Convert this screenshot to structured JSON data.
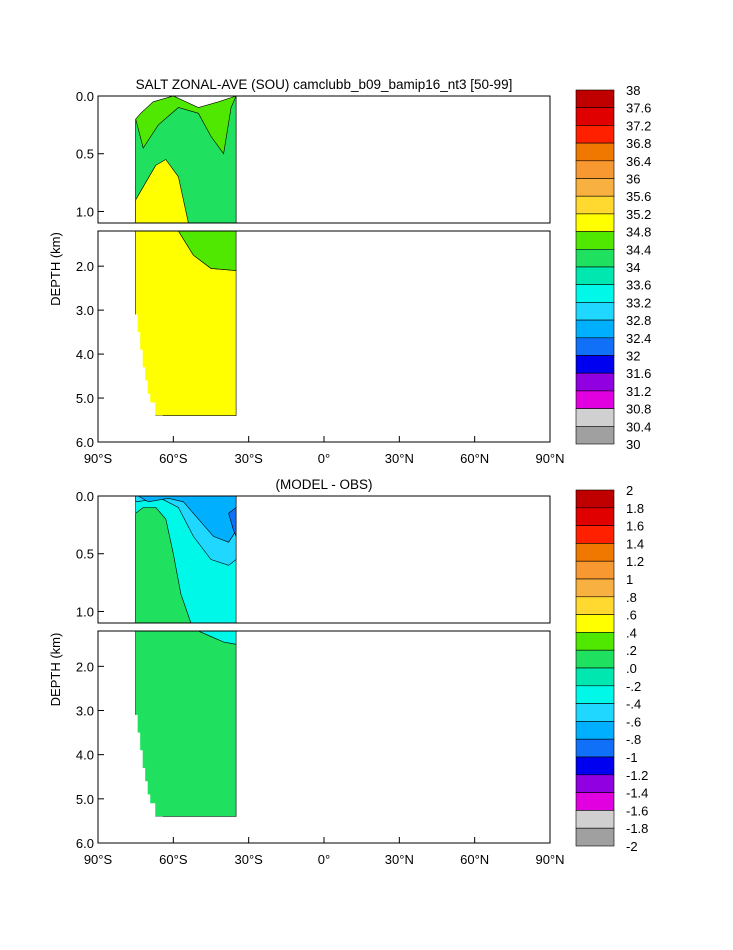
{
  "chart_data": [
    {
      "type": "heatmap",
      "title": "SALT ZONAL-AVE (SOU) camclubb_b09_bamip16_nt3 [50-99]",
      "xlabel": "",
      "ylabel": "DEPTH (km)",
      "x_ticks": [
        "90°S",
        "60°S",
        "30°S",
        "0°",
        "30°N",
        "60°N",
        "90°N"
      ],
      "x_range": [
        -90,
        90
      ],
      "y_range": [
        0,
        6
      ],
      "y_ticks_upper": [
        "0.0",
        "0.5",
        "1.0"
      ],
      "y_ticks_lower": [
        "2.0",
        "3.0",
        "4.0",
        "5.0",
        "6.0"
      ],
      "colorbar": {
        "labels": [
          "38",
          "37.6",
          "37.2",
          "36.8",
          "36.4",
          "36",
          "35.6",
          "35.2",
          "34.8",
          "34.4",
          "34",
          "33.6",
          "33.2",
          "32.8",
          "32.4",
          "32",
          "31.6",
          "31.2",
          "30.8",
          "30.4",
          "30"
        ],
        "colors": [
          "#c00000",
          "#e00000",
          "#ff2000",
          "#f07800",
          "#f89830",
          "#f8b040",
          "#ffd830",
          "#ffff00",
          "#50e800",
          "#20e060",
          "#00e8b0",
          "#00f8e8",
          "#20d8ff",
          "#00b0ff",
          "#1070f8",
          "#0000f0",
          "#9000e0",
          "#e000e0",
          "#d0d0d0",
          "#a0a0a0"
        ]
      },
      "regions": [
        {
          "zone": "upper",
          "fill_level": "34.4-34.8",
          "polygon": [
            [
              -75,
              0.2
            ],
            [
              -73,
              0.15
            ],
            [
              -68,
              0.05
            ],
            [
              -60,
              0.0
            ],
            [
              -50,
              0.1
            ],
            [
              -42,
              0.05
            ],
            [
              -35,
              0.0
            ],
            [
              -35,
              1.1
            ],
            [
              -75,
              1.1
            ]
          ]
        },
        {
          "zone": "upper",
          "fill_level": "34-34.4",
          "polygon": [
            [
              -75,
              0.2
            ],
            [
              -72,
              0.45
            ],
            [
              -66,
              0.25
            ],
            [
              -58,
              0.1
            ],
            [
              -50,
              0.15
            ],
            [
              -45,
              0.35
            ],
            [
              -40,
              0.5
            ],
            [
              -37,
              0.1
            ],
            [
              -35,
              0.0
            ],
            [
              -35,
              1.1
            ],
            [
              -58,
              1.1
            ],
            [
              -62,
              0.7
            ],
            [
              -67,
              0.6
            ],
            [
              -71,
              0.75
            ],
            [
              -75,
              0.9
            ]
          ]
        },
        {
          "zone": "upper",
          "fill_level": "34.8-35.2",
          "polygon": [
            [
              -75,
              0.9
            ],
            [
              -71,
              0.75
            ],
            [
              -67,
              0.6
            ],
            [
              -63,
              0.55
            ],
            [
              -58,
              0.7
            ],
            [
              -54,
              1.1
            ],
            [
              -75,
              1.1
            ]
          ]
        },
        {
          "zone": "lower",
          "fill_level": "34.8-35.2",
          "polygon": [
            [
              -75,
              1.2
            ],
            [
              -75,
              5.4
            ],
            [
              -35,
              5.4
            ],
            [
              -35,
              2.1
            ],
            [
              -45,
              2.05
            ],
            [
              -52,
              1.75
            ],
            [
              -58,
              1.2
            ]
          ]
        },
        {
          "zone": "lower",
          "fill_level": "34.4-34.8",
          "polygon": [
            [
              -58,
              1.2
            ],
            [
              -52,
              1.75
            ],
            [
              -45,
              2.05
            ],
            [
              -35,
              2.1
            ],
            [
              -35,
              1.2
            ]
          ]
        }
      ]
    },
    {
      "type": "heatmap",
      "title": "(MODEL - OBS)",
      "xlabel": "",
      "ylabel": "DEPTH (km)",
      "x_ticks": [
        "90°S",
        "60°S",
        "30°S",
        "0°",
        "30°N",
        "60°N",
        "90°N"
      ],
      "x_range": [
        -90,
        90
      ],
      "y_range": [
        0,
        6
      ],
      "y_ticks_upper": [
        "0.0",
        "0.5",
        "1.0"
      ],
      "y_ticks_lower": [
        "2.0",
        "3.0",
        "4.0",
        "5.0",
        "6.0"
      ],
      "colorbar": {
        "labels": [
          "2",
          "1.8",
          "1.6",
          "1.4",
          "1.2",
          "1",
          ".8",
          ".6",
          ".4",
          ".2",
          ".0",
          "-.2",
          "-.4",
          "-.6",
          "-.8",
          "-1",
          "-1.2",
          "-1.4",
          "-1.6",
          "-1.8",
          "-2"
        ],
        "colors": [
          "#c00000",
          "#e00000",
          "#ff2000",
          "#f07800",
          "#f89830",
          "#f8b040",
          "#ffd830",
          "#ffff00",
          "#50e800",
          "#20e060",
          "#00e8b0",
          "#00f8e8",
          "#20d8ff",
          "#00b0ff",
          "#1070f8",
          "#0000f0",
          "#9000e0",
          "#e000e0",
          "#d0d0d0",
          "#a0a0a0"
        ]
      },
      "regions": [
        {
          "zone": "upper",
          "fill_level": "-.2-0",
          "polygon": [
            [
              -75,
              0.0
            ],
            [
              -35,
              0.0
            ],
            [
              -35,
              1.1
            ],
            [
              -75,
              1.1
            ]
          ]
        },
        {
          "zone": "upper",
          "fill_level": "-.4--.2",
          "polygon": [
            [
              -75,
              0.05
            ],
            [
              -65,
              0.02
            ],
            [
              -58,
              0.1
            ],
            [
              -52,
              0.35
            ],
            [
              -45,
              0.55
            ],
            [
              -38,
              0.6
            ],
            [
              -35,
              0.55
            ],
            [
              -35,
              0.0
            ],
            [
              -75,
              0.0
            ]
          ]
        },
        {
          "zone": "upper",
          "fill_level": "-.6--.4",
          "polygon": [
            [
              -74,
              0.0
            ],
            [
              -70,
              0.05
            ],
            [
              -62,
              0.02
            ],
            [
              -56,
              0.05
            ],
            [
              -50,
              0.2
            ],
            [
              -44,
              0.35
            ],
            [
              -38,
              0.4
            ],
            [
              -35,
              0.3
            ],
            [
              -35,
              0.0
            ]
          ]
        },
        {
          "zone": "upper",
          "fill_level": "-.8--.6",
          "polygon": [
            [
              -38,
              0.15
            ],
            [
              -36,
              0.3
            ],
            [
              -35,
              0.35
            ],
            [
              -35,
              0.1
            ]
          ]
        },
        {
          "zone": "upper",
          "fill_level": "0-.2",
          "polygon": [
            [
              -75,
              1.1
            ],
            [
              -75,
              0.15
            ],
            [
              -72,
              0.1
            ],
            [
              -67,
              0.1
            ],
            [
              -63,
              0.2
            ],
            [
              -60,
              0.5
            ],
            [
              -57,
              0.85
            ],
            [
              -53,
              1.1
            ]
          ]
        },
        {
          "zone": "lower",
          "fill_level": "0-.2",
          "polygon": [
            [
              -75,
              1.2
            ],
            [
              -75,
              5.4
            ],
            [
              -35,
              5.4
            ],
            [
              -35,
              1.5
            ],
            [
              -40,
              1.45
            ],
            [
              -50,
              1.2
            ]
          ]
        },
        {
          "zone": "lower",
          "fill_level": "-.2-0",
          "polygon": [
            [
              -50,
              1.2
            ],
            [
              -40,
              1.45
            ],
            [
              -35,
              1.5
            ],
            [
              -35,
              1.2
            ]
          ]
        }
      ]
    }
  ]
}
